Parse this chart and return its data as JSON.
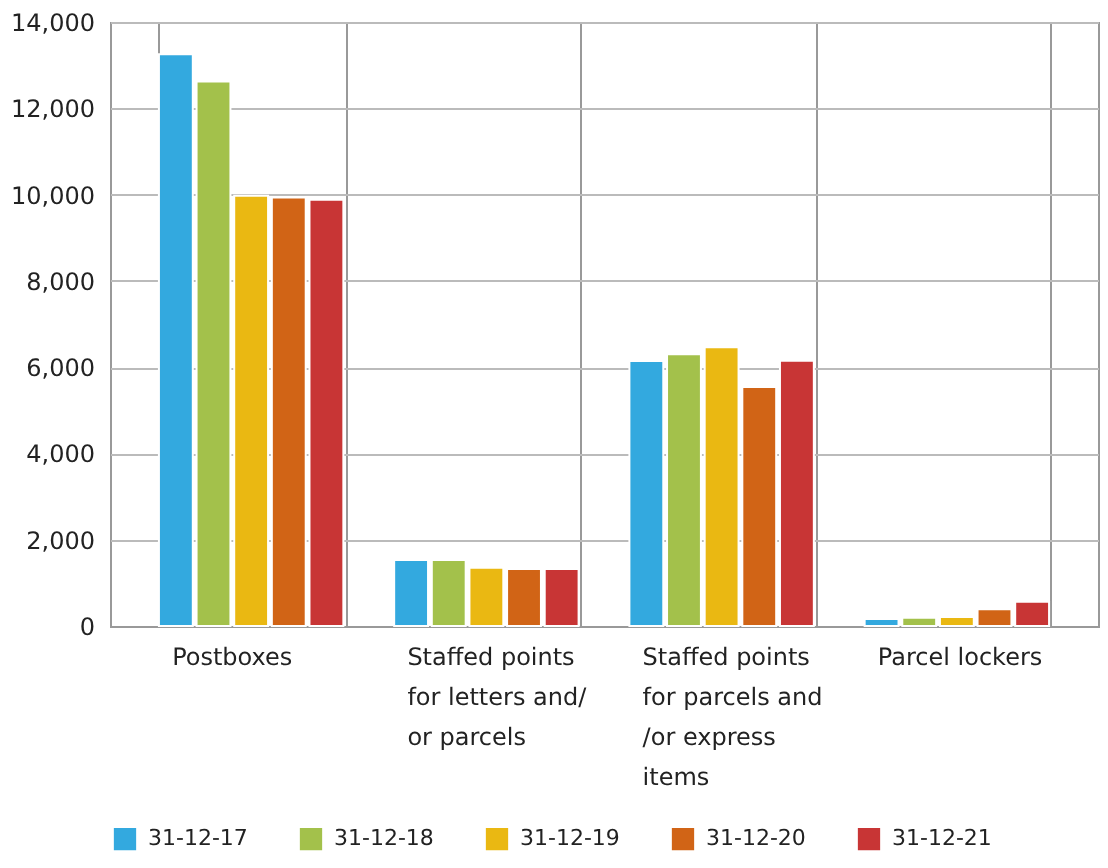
{
  "chart_data": {
    "type": "bar",
    "categories": [
      "Postboxes",
      "Staffed points for letters and/ or parcels",
      "Staffed points for parcels and /or express items",
      "Parcel lockers"
    ],
    "series": [
      {
        "name": "31-12-17",
        "color": "#33a9df",
        "values": [
          13250,
          1530,
          6140,
          160
        ]
      },
      {
        "name": "31-12-18",
        "color": "#a3c14b",
        "values": [
          12620,
          1530,
          6300,
          190
        ]
      },
      {
        "name": "31-12-19",
        "color": "#eab812",
        "values": [
          9970,
          1350,
          6460,
          210
        ]
      },
      {
        "name": "31-12-20",
        "color": "#d16416",
        "values": [
          9930,
          1320,
          5540,
          390
        ]
      },
      {
        "name": "31-12-21",
        "color": "#c83535",
        "values": [
          9880,
          1320,
          6150,
          560
        ]
      }
    ],
    "ylim": [
      0,
      14000
    ],
    "yticks": [
      0,
      {
        "value": 2000,
        "label": "2,000"
      },
      {
        "value": 4000,
        "label": "4,000"
      },
      {
        "value": 6000,
        "label": "6,000"
      },
      {
        "value": 8000,
        "label": "8,000"
      },
      {
        "value": 10000,
        "label": "10,000"
      },
      {
        "value": 12000,
        "label": "12,000"
      },
      {
        "value": 14000,
        "label": "14,000"
      }
    ],
    "grid": true,
    "legend": "bottom"
  }
}
